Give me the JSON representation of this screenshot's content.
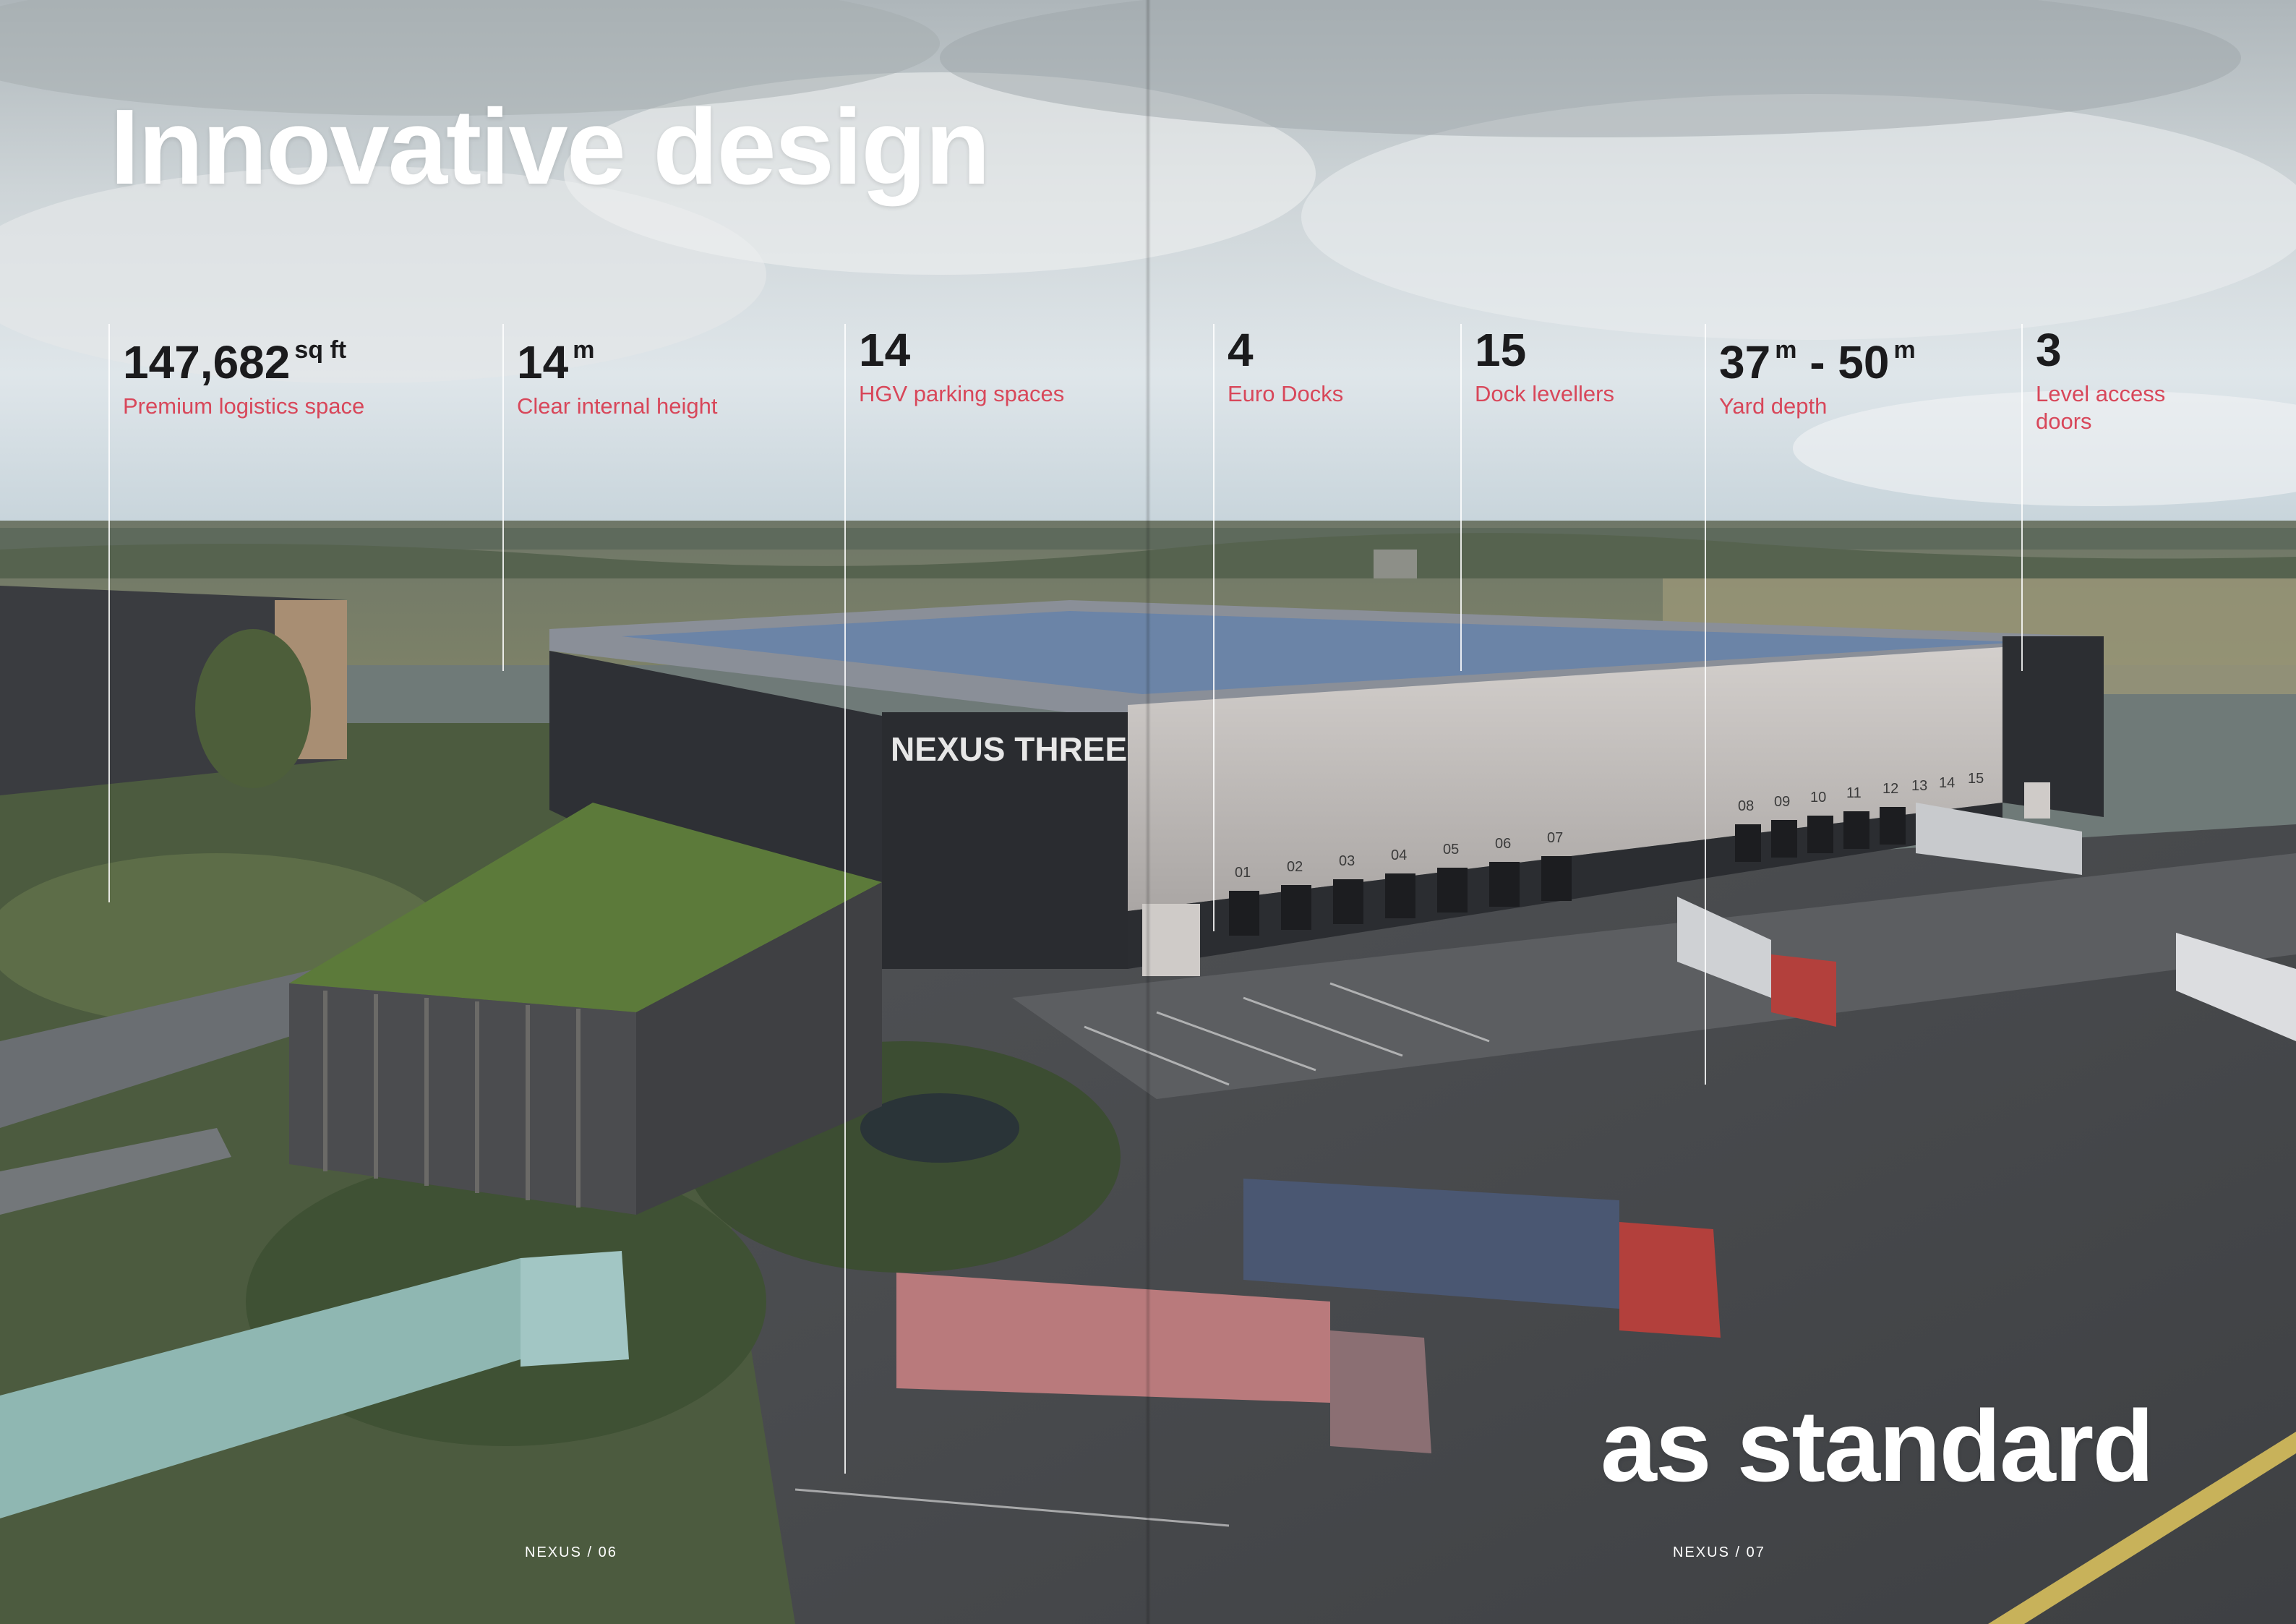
{
  "spread": {
    "headline_top": "Innovative design",
    "headline_bottom": "as standard"
  },
  "stats": [
    {
      "value": "147,682",
      "unit": "sq ft",
      "label": "Premium logistics space"
    },
    {
      "value": "14",
      "unit": "m",
      "label": "Clear internal height"
    },
    {
      "value": "14",
      "unit": "",
      "label": "HGV parking spaces"
    },
    {
      "value": "4",
      "unit": "",
      "label": "Euro Docks"
    },
    {
      "value": "15",
      "unit": "",
      "label": "Dock levellers"
    },
    {
      "value_a": "37",
      "unit_a": "m",
      "separator": " - ",
      "value_b": "50",
      "unit_b": "m",
      "label": "Yard depth"
    },
    {
      "value": "3",
      "unit": "",
      "label": "Level access doors"
    }
  ],
  "building_sign": "NEXUS THREE",
  "dock_numbers": [
    "01",
    "02",
    "03",
    "04",
    "05",
    "06",
    "07",
    "08",
    "09",
    "10",
    "11",
    "12",
    "13",
    "14",
    "15"
  ],
  "folios": {
    "left": "NEXUS  /  06",
    "right": "NEXUS  /  07"
  },
  "colors": {
    "accent_label": "#d8475a",
    "stat_value": "#1b1b1d",
    "headline": "#ffffff"
  }
}
